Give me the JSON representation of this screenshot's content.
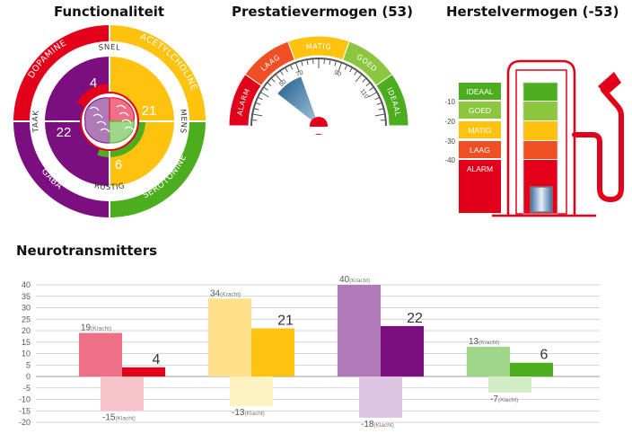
{
  "titles": {
    "functionaliteit": "Functionaliteit",
    "prestatievermogen": "Prestatievermogen (53)",
    "herstelvermogen": "Herstelvermogen (-53)",
    "neurotransmitters": "Neurotransmitters"
  },
  "functionaliteit": {
    "outer_labels": [
      "DOPAMINE",
      "ACETYLCHOLINE",
      "SEROTONINE",
      "GABA"
    ],
    "inner_labels": [
      "SNEL",
      "MENS",
      "RUSTIG",
      "TAAK"
    ],
    "values": [
      4,
      21,
      6,
      22
    ],
    "colors": {
      "dopamine": "#e2001a",
      "acetylcholine": "#ffc20e",
      "serotonine": "#4cae1e",
      "gaba": "#7b0f7f"
    }
  },
  "prestatievermogen": {
    "value": 53,
    "zones": [
      "ALARM",
      "LAAG",
      "MATIG",
      "GOED",
      "IDEAAL"
    ],
    "ticks": [
      "50",
      "70",
      "90",
      "110"
    ],
    "colors": [
      "#e2001a",
      "#f04e23",
      "#ffc20e",
      "#8cc63f",
      "#4cae1e"
    ]
  },
  "herstelvermogen": {
    "value": -53,
    "zones": [
      "IDEAAL",
      "GOED",
      "MATIG",
      "LAAG",
      "ALARM"
    ],
    "ticks": [
      "-10",
      "-20",
      "-30",
      "-40"
    ],
    "colors": [
      "#4cae1e",
      "#8cc63f",
      "#ffc20e",
      "#f04e23",
      "#e2001a"
    ]
  },
  "chart_data": {
    "type": "bar",
    "title": "Neurotransmitters",
    "ylim": [
      -20,
      40
    ],
    "yticks": [
      "40",
      "35",
      "30",
      "25",
      "20",
      "15",
      "10",
      "5",
      "0",
      "-5",
      "-10",
      "-15",
      "-20"
    ],
    "groups": [
      {
        "kracht": 19,
        "klacht": -15,
        "score": 4,
        "colors": {
          "kracht": "#ef6f86",
          "klacht": "#f7c4cc",
          "score": "#e2001a"
        }
      },
      {
        "kracht": 34,
        "klacht": -13,
        "score": 21,
        "colors": {
          "kracht": "#ffe08a",
          "klacht": "#fff2c2",
          "score": "#ffc20e"
        }
      },
      {
        "kracht": 40,
        "klacht": -18,
        "score": 22,
        "colors": {
          "kracht": "#b07ab8",
          "klacht": "#dcc4e2",
          "score": "#7b0f7f"
        }
      },
      {
        "kracht": 13,
        "klacht": -7,
        "score": 6,
        "colors": {
          "kracht": "#9fd68a",
          "klacht": "#d2ecc6",
          "score": "#4cae1e"
        }
      }
    ],
    "kracht_label": "(Kracht)",
    "klacht_label": "(Klacht)"
  }
}
